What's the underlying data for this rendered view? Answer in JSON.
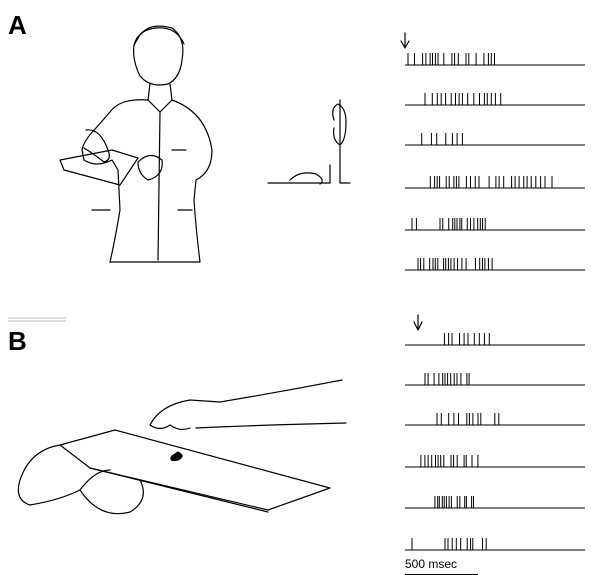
{
  "panels": [
    {
      "label": "A"
    },
    {
      "label": "B"
    }
  ],
  "scale_bar": "500 msec"
}
